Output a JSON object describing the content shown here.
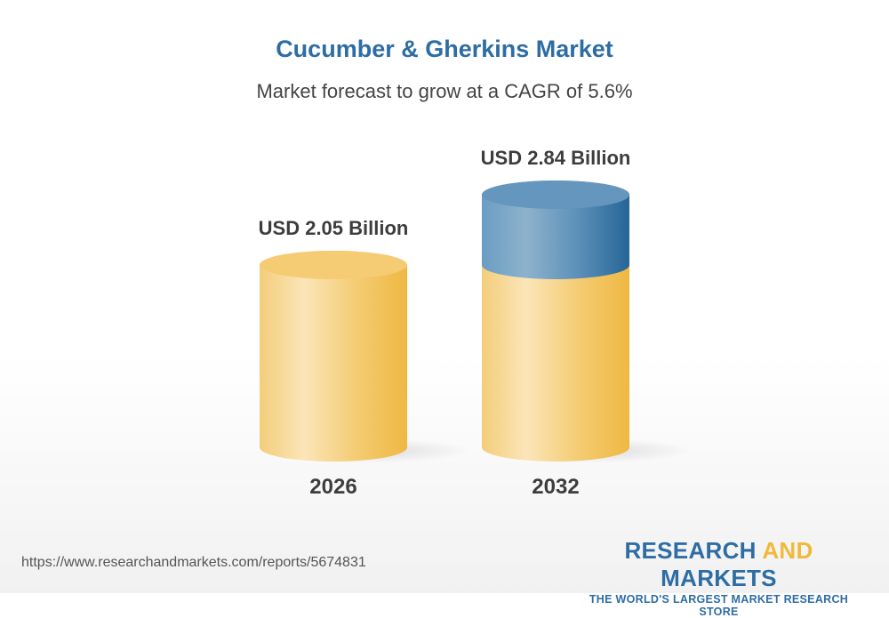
{
  "chart_data": {
    "type": "bar",
    "style": "3d-cylinder",
    "title": "Cucumber & Gherkins Market",
    "subtitle": "Market forecast to grow at a CAGR of 5.6%",
    "categories": [
      "2026",
      "2032"
    ],
    "values": [
      2.05,
      2.84
    ],
    "data_labels": [
      "USD 2.05 Billion",
      "USD 2.84 Billion"
    ],
    "unit": "USD Billion",
    "colors": {
      "base": "#f2c463",
      "growth": "#2e6da4"
    }
  },
  "footer": {
    "url": "https://www.researchandmarkets.com/reports/5674831",
    "logo_part1": "RESEARCH ",
    "logo_part2": "AND",
    "logo_part3": " MARKETS",
    "tagline": "THE WORLD'S LARGEST MARKET RESEARCH STORE"
  }
}
